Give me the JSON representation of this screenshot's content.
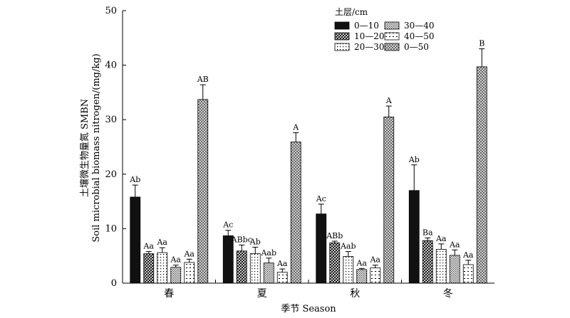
{
  "chart_data": {
    "type": "bar",
    "categories": [
      "春",
      "夏",
      "秋",
      "冬"
    ],
    "series": [
      {
        "name": "0—10",
        "values": [
          15.8,
          8.7,
          12.7,
          17.0
        ],
        "errors": [
          2.2,
          1.0,
          1.8,
          4.7
        ],
        "labels": [
          "Ab",
          "Ac",
          "Ac",
          "Ab"
        ]
      },
      {
        "name": "10—20",
        "values": [
          5.4,
          5.9,
          7.4,
          7.8
        ],
        "errors": [
          0.4,
          1.1,
          0.3,
          0.5
        ],
        "labels": [
          "Aa",
          "ABbc",
          "ABb",
          "Ba"
        ]
      },
      {
        "name": "20—30",
        "values": [
          5.6,
          5.4,
          4.9,
          6.2
        ],
        "errors": [
          0.9,
          1.2,
          0.9,
          1.0
        ],
        "labels": [
          "Aa",
          "Ab",
          "Aab",
          "Aa"
        ]
      },
      {
        "name": "30—40",
        "values": [
          2.9,
          3.7,
          2.5,
          5.1
        ],
        "errors": [
          0.4,
          0.9,
          0.2,
          1.0
        ],
        "labels": [
          "Aa",
          "Aab",
          "Aa",
          "Aa"
        ]
      },
      {
        "name": "40—50",
        "values": [
          3.8,
          2.0,
          2.8,
          3.4
        ],
        "errors": [
          0.6,
          0.6,
          0.5,
          0.8
        ],
        "labels": [
          "Aa",
          "Aa",
          "Aa",
          "Aa"
        ]
      },
      {
        "name": "0—50",
        "values": [
          33.7,
          25.9,
          30.5,
          39.7
        ],
        "errors": [
          2.7,
          1.7,
          2.0,
          3.3
        ],
        "labels": [
          "AB",
          "A",
          "A",
          "B"
        ]
      }
    ],
    "ylim": [
      0,
      50
    ],
    "yticks": [
      0,
      10,
      20,
      30,
      40,
      50
    ],
    "xlabel": "季节 Season",
    "ylabel_line1": "土壤微生物量氮 SMBN",
    "ylabel_line2": "Soil microbial biomass nitrogen/(mg/kg)",
    "legend_title": "土层/cm",
    "legend_position": "top-right",
    "grid": false
  }
}
